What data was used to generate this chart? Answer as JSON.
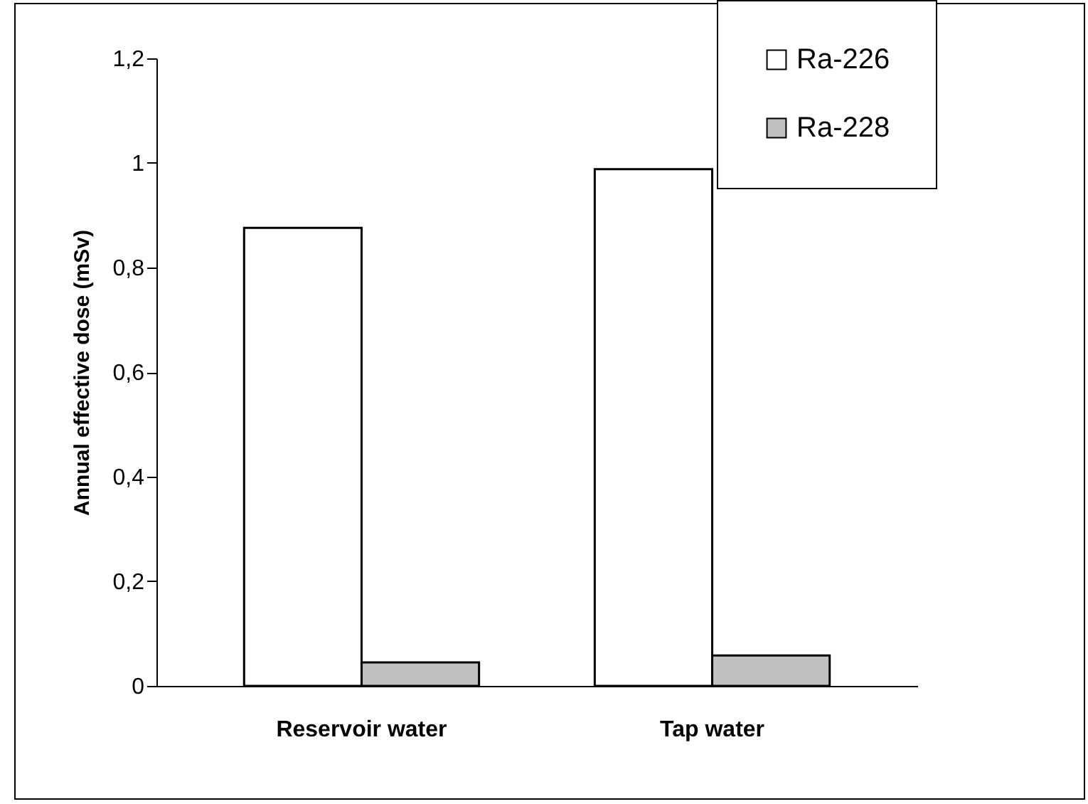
{
  "chart_data": {
    "type": "bar",
    "ylabel": "Annual effective dose (mSv)",
    "categories": [
      "Reservoir water",
      "Tap water"
    ],
    "series": [
      {
        "name": "Ra-226",
        "color": "#ffffff",
        "values": [
          0.876,
          0.988
        ]
      },
      {
        "name": "Ra-228",
        "color": "#c0c0c0",
        "values": [
          0.045,
          0.058
        ]
      }
    ],
    "ylim": [
      0,
      1.2
    ],
    "yticks": [
      {
        "value": 0,
        "label": "0"
      },
      {
        "value": 0.2,
        "label": "0,2"
      },
      {
        "value": 0.4,
        "label": "0,4"
      },
      {
        "value": 0.6,
        "label": "0,6"
      },
      {
        "value": 0.8,
        "label": "0,8"
      },
      {
        "value": 1,
        "label": "1"
      },
      {
        "value": 1.2,
        "label": "1,2"
      }
    ],
    "grid": false,
    "legend": "top right"
  }
}
